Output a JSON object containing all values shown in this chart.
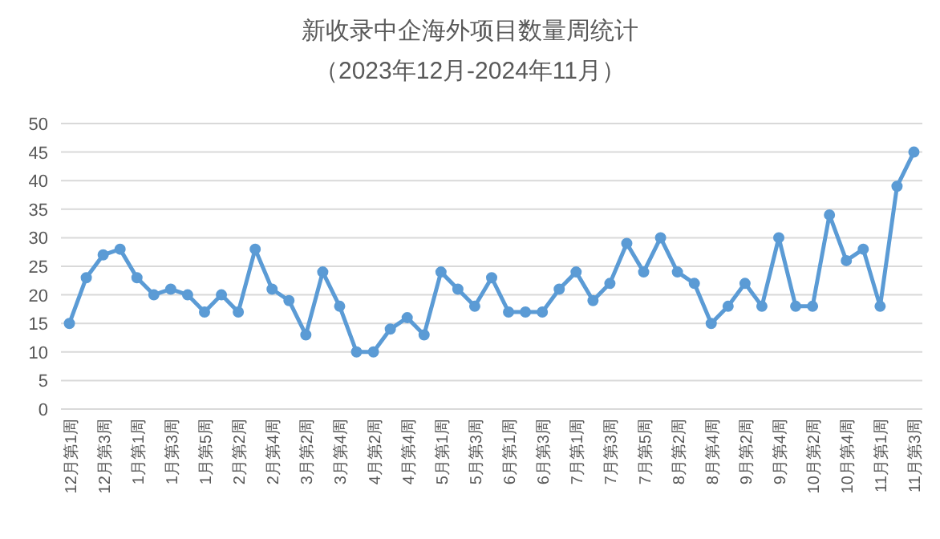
{
  "chart_data": {
    "type": "line",
    "title": "新收录中企海外项目数量周统计",
    "subtitle": "（2023年12月-2024年11月）",
    "categories": [
      "12月第1周",
      null,
      "12月第3周",
      null,
      "1月第1周",
      null,
      "1月第3周",
      null,
      "1月第5周",
      null,
      "2月第2周",
      null,
      "2月第4周",
      null,
      "3月第2周",
      null,
      "3月第4周",
      null,
      "4月第2周",
      null,
      "4月第4周",
      null,
      "5月第1周",
      null,
      "5月第3周",
      null,
      "6月第1周",
      null,
      "6月第3周",
      null,
      "7月第1周",
      null,
      "7月第3周",
      null,
      "7月第5周",
      null,
      "8月第2周",
      null,
      "8月第4周",
      null,
      "9月第2周",
      null,
      "9月第4周",
      null,
      "10月第2周",
      null,
      "10月第4周",
      null,
      "11月第1周",
      null,
      "11月第3周"
    ],
    "series": [
      {
        "color": "#5b9bd5",
        "values": [
          15,
          23,
          27,
          28,
          23,
          20,
          21,
          20,
          17,
          20,
          17,
          28,
          21,
          19,
          13,
          24,
          18,
          10,
          10,
          14,
          16,
          13,
          24,
          21,
          18,
          23,
          17,
          17,
          17,
          21,
          24,
          19,
          22,
          29,
          24,
          30,
          24,
          22,
          15,
          18,
          22,
          18,
          30,
          18,
          18,
          34,
          26,
          28,
          18,
          39,
          45
        ]
      }
    ],
    "ylim": [
      0,
      50
    ],
    "yticks": [
      0,
      5,
      10,
      15,
      20,
      25,
      30,
      35,
      40,
      45,
      50
    ],
    "grid": "y",
    "marker": "circle",
    "line_style": "solid"
  }
}
